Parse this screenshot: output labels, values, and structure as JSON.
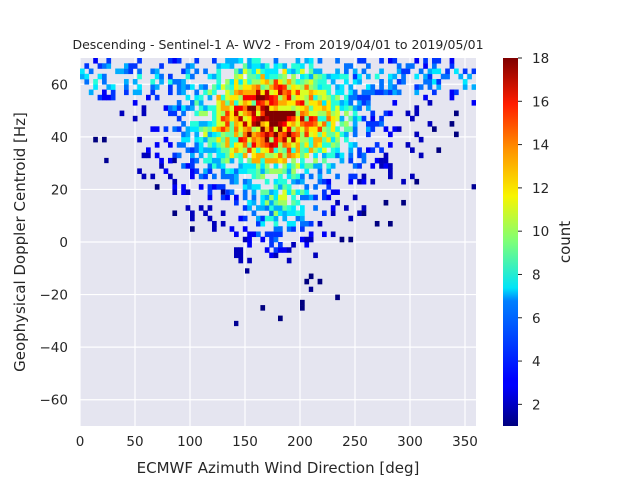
{
  "chart_data": {
    "type": "heatmap",
    "title": "Descending - Sentinel-1 A- WV2 - From 2019/04/01 to 2019/05/01",
    "xlabel": "ECMWF Azimuth Wind Direction [deg]",
    "ylabel": "Geophysical Doppler Centroid [Hz]",
    "xlim": [
      0,
      360
    ],
    "ylim": [
      -70,
      70
    ],
    "x_ticks": [
      "0",
      "50",
      "100",
      "150",
      "200",
      "250",
      "300",
      "350"
    ],
    "y_ticks": [
      "−60",
      "−40",
      "−20",
      "0",
      "20",
      "40",
      "60"
    ],
    "bin_width_x": 4,
    "bin_height_y": 2,
    "colormap": "jet",
    "colorbar": {
      "label": "count",
      "range": [
        1,
        18
      ],
      "ticks": [
        "2",
        "4",
        "6",
        "8",
        "10",
        "12",
        "14",
        "16",
        "18"
      ]
    },
    "grid": true,
    "background": "#e5e5f0",
    "distribution_summary": {
      "peak_x_deg": 175,
      "peak_y_hz": 47,
      "peak_count": 18,
      "x_spread_deg": 55,
      "coverage_y_min_hz": -32,
      "coverage_y_max_hz": 69
    }
  }
}
